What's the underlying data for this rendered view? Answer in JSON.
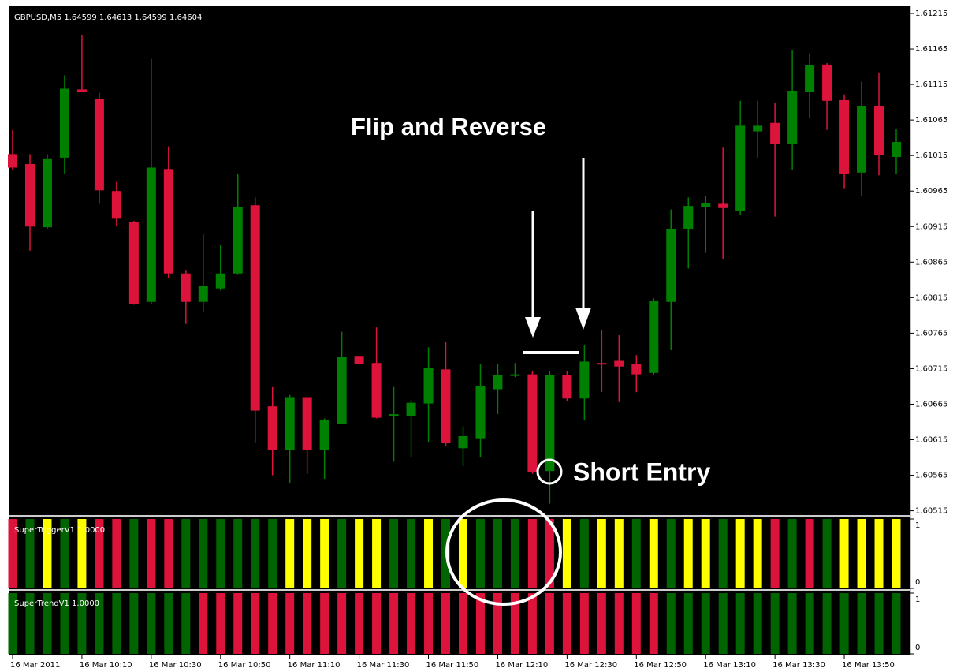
{
  "chart_data": [
    {
      "type": "candlestick",
      "title": "GBPUSD,M5  1.64599 1.64613 1.64599 1.64604",
      "annotations": [
        "Flip and Reverse",
        "Short Entry"
      ],
      "categories": [
        "16 Mar 2011",
        null,
        null,
        null,
        "16 Mar 10:10",
        null,
        null,
        null,
        "16 Mar 10:30",
        null,
        null,
        null,
        "16 Mar 10:50",
        null,
        null,
        null,
        "16 Mar 11:10",
        null,
        null,
        null,
        "16 Mar 11:30",
        null,
        null,
        null,
        "16 Mar 11:50",
        null,
        null,
        null,
        "16 Mar 12:10",
        null,
        null,
        null,
        "16 Mar 12:30",
        null,
        null,
        null,
        "16 Mar 12:50",
        null,
        null,
        null,
        "16 Mar 13:10",
        null,
        null,
        null,
        "16 Mar 13:30",
        null,
        null,
        null,
        "16 Mar 13:50",
        null,
        null,
        null
      ],
      "open": [
        1.61017,
        1.61003,
        1.60914,
        1.61012,
        1.61108,
        1.61095,
        1.60965,
        1.60922,
        1.60809,
        1.60996,
        1.60849,
        1.60809,
        1.60828,
        1.60849,
        1.60945,
        1.60662,
        1.606,
        1.60675,
        1.60601,
        1.60637,
        1.60733,
        1.60723,
        1.60648,
        1.60648,
        1.60666,
        1.60714,
        1.60603,
        1.60617,
        1.60686,
        1.60705,
        1.60707,
        1.60571,
        1.60706,
        1.60673,
        1.60723,
        1.60726,
        1.60721,
        1.60709,
        1.60809,
        1.60912,
        1.60942,
        1.60947,
        1.60937,
        1.61049,
        1.61061,
        1.61031,
        1.61104,
        1.61143,
        1.61093,
        1.60991,
        1.61084,
        1.61013
      ],
      "high": [
        1.61051,
        1.61017,
        1.61017,
        1.61128,
        1.61184,
        1.61103,
        1.60978,
        1.60923,
        1.61151,
        1.61028,
        1.60854,
        1.60904,
        1.60889,
        1.60989,
        1.60956,
        1.60689,
        1.60678,
        1.60675,
        1.60645,
        1.60767,
        1.60733,
        1.60773,
        1.60689,
        1.60671,
        1.60745,
        1.60753,
        1.60634,
        1.60721,
        1.60721,
        1.60723,
        1.60712,
        1.60712,
        1.60712,
        1.60748,
        1.60769,
        1.60762,
        1.60734,
        1.60814,
        1.60939,
        1.60956,
        1.60958,
        1.61026,
        1.61092,
        1.61092,
        1.61089,
        1.61164,
        1.61159,
        1.61145,
        1.61101,
        1.61119,
        1.61132,
        1.61053
      ],
      "low": [
        1.60995,
        1.60881,
        1.60912,
        1.60989,
        1.61104,
        1.60947,
        1.60915,
        1.60805,
        1.60806,
        1.60843,
        1.60778,
        1.60795,
        1.60825,
        1.60847,
        1.6061,
        1.60565,
        1.60554,
        1.60567,
        1.6056,
        1.60637,
        1.60721,
        1.60645,
        1.60584,
        1.6059,
        1.60612,
        1.60606,
        1.60578,
        1.6059,
        1.60651,
        1.60703,
        1.60567,
        1.60525,
        1.6067,
        1.60642,
        1.60682,
        1.60668,
        1.60682,
        1.60706,
        1.60741,
        1.60856,
        1.60878,
        1.60869,
        1.60931,
        1.61012,
        1.60929,
        1.60995,
        1.61067,
        1.61051,
        1.60969,
        1.60958,
        1.60987,
        1.60989
      ],
      "close": [
        1.60998,
        1.60915,
        1.61011,
        1.61109,
        1.61104,
        1.60966,
        1.60926,
        1.60806,
        1.60998,
        1.60849,
        1.60809,
        1.60831,
        1.60849,
        1.60942,
        1.60656,
        1.60601,
        1.60675,
        1.606,
        1.60643,
        1.60731,
        1.60722,
        1.60646,
        1.60651,
        1.60667,
        1.60716,
        1.6061,
        1.6062,
        1.60691,
        1.60706,
        1.60707,
        1.6057,
        1.60706,
        1.60673,
        1.60725,
        1.60721,
        1.60718,
        1.60707,
        1.60811,
        1.60912,
        1.60944,
        1.60948,
        1.60941,
        1.61057,
        1.61057,
        1.61031,
        1.61106,
        1.61142,
        1.61092,
        1.60989,
        1.61084,
        1.61016,
        1.61034
      ],
      "up_color": "#008000",
      "down_color": "#dc143c",
      "ylim": [
        1.60509,
        1.61225
      ],
      "yticks": [
        1.61215,
        1.61165,
        1.61115,
        1.61065,
        1.61015,
        1.60965,
        1.60915,
        1.60865,
        1.60815,
        1.60765,
        1.60715,
        1.60665,
        1.60615,
        1.60565,
        1.60515
      ]
    },
    {
      "type": "bar",
      "title": "SuperTriggerV1 1.0000",
      "values": [
        1,
        1,
        1,
        1,
        1,
        1,
        1,
        1,
        1,
        1,
        1,
        1,
        1,
        1,
        1,
        1,
        1,
        1,
        1,
        1,
        1,
        1,
        1,
        1,
        1,
        1,
        1,
        1,
        1,
        1,
        1,
        1,
        1,
        1,
        1,
        1,
        1,
        1,
        1,
        1,
        1,
        1,
        1,
        1,
        1,
        1,
        1,
        1,
        1,
        1,
        1,
        1
      ],
      "colors": [
        "#dc143c",
        "#006400",
        "#ffff00",
        "#006400",
        "#ffff00",
        "#dc143c",
        "#dc143c",
        "#006400",
        "#dc143c",
        "#dc143c",
        "#006400",
        "#006400",
        "#006400",
        "#006400",
        "#006400",
        "#006400",
        "#ffff00",
        "#ffff00",
        "#ffff00",
        "#006400",
        "#ffff00",
        "#ffff00",
        "#006400",
        "#006400",
        "#ffff00",
        "#006400",
        "#ffff00",
        "#006400",
        "#006400",
        "#006400",
        "#dc143c",
        "#dc143c",
        "#ffff00",
        "#006400",
        "#ffff00",
        "#ffff00",
        "#006400",
        "#ffff00",
        "#006400",
        "#ffff00",
        "#ffff00",
        "#006400",
        "#ffff00",
        "#ffff00",
        "#dc143c",
        "#006400",
        "#dc143c",
        "#006400",
        "#ffff00",
        "#ffff00",
        "#ffff00",
        "#ffff00"
      ],
      "ylim": [
        0,
        1
      ],
      "yticks": [
        1,
        0
      ]
    },
    {
      "type": "bar",
      "title": "SuperTrendV1 1.0000",
      "values": [
        1,
        1,
        1,
        1,
        1,
        1,
        1,
        1,
        1,
        1,
        1,
        1,
        1,
        1,
        1,
        1,
        1,
        1,
        1,
        1,
        1,
        1,
        1,
        1,
        1,
        1,
        1,
        1,
        1,
        1,
        1,
        1,
        1,
        1,
        1,
        1,
        1,
        1,
        1,
        1,
        1,
        1,
        1,
        1,
        1,
        1,
        1,
        1,
        1,
        1,
        1,
        1
      ],
      "colors": [
        "#006400",
        "#006400",
        "#006400",
        "#006400",
        "#006400",
        "#006400",
        "#006400",
        "#006400",
        "#006400",
        "#006400",
        "#006400",
        "#dc143c",
        "#dc143c",
        "#dc143c",
        "#dc143c",
        "#dc143c",
        "#dc143c",
        "#dc143c",
        "#dc143c",
        "#dc143c",
        "#dc143c",
        "#dc143c",
        "#dc143c",
        "#dc143c",
        "#dc143c",
        "#dc143c",
        "#dc143c",
        "#dc143c",
        "#dc143c",
        "#dc143c",
        "#dc143c",
        "#dc143c",
        "#dc143c",
        "#dc143c",
        "#dc143c",
        "#dc143c",
        "#dc143c",
        "#dc143c",
        "#006400",
        "#006400",
        "#006400",
        "#006400",
        "#006400",
        "#006400",
        "#006400",
        "#006400",
        "#006400",
        "#006400",
        "#006400",
        "#006400",
        "#006400",
        "#006400"
      ],
      "ylim": [
        0,
        1
      ],
      "yticks": [
        1,
        0
      ]
    }
  ]
}
